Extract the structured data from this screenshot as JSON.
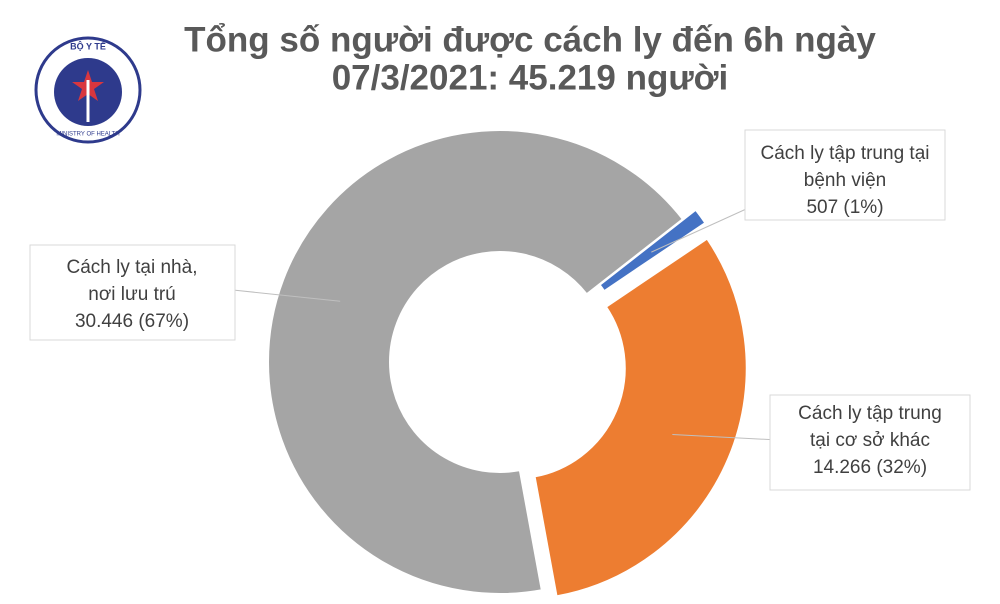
{
  "logo": {
    "top": "BỘ Y TẾ",
    "bottom": "MINISTRY OF HEALTH"
  },
  "chart_data": {
    "type": "donut",
    "title": [
      "Tổng số người được cách ly đến 6h ngày",
      "07/3/2021: 45.219 người"
    ],
    "categories": [
      [
        "Cách ly tập trung tại",
        "bệnh viện"
      ],
      [
        "Cách ly tập trung",
        "tại cơ sở khác"
      ],
      [
        "Cách ly tại nhà,",
        "nơi lưu trú"
      ]
    ],
    "values": [
      507,
      14266,
      30446
    ],
    "value_labels": [
      "507 (1%)",
      "14.266 (32%)",
      "30.446 (67%)"
    ],
    "colors": [
      "#4472c4",
      "#ed7d31",
      "#a5a5a5"
    ],
    "exploded": [
      true,
      true,
      false
    ]
  }
}
